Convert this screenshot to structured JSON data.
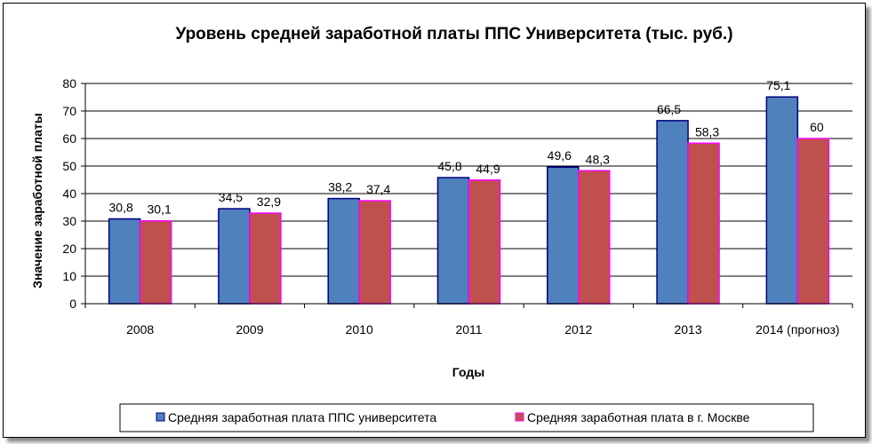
{
  "chart_data": {
    "type": "bar",
    "title": "Уровень средней заработной платы ППС Университета (тыс. руб.)",
    "xlabel": "Годы",
    "ylabel": "Значение заработной платы",
    "categories": [
      "2008",
      "2009",
      "2010",
      "2011",
      "2012",
      "2013",
      "2014 (прогноз)"
    ],
    "series": [
      {
        "name": "Средняя заработная плата ППС университета",
        "values": [
          30.8,
          34.5,
          38.2,
          45.8,
          49.6,
          66.5,
          75.1
        ],
        "labels": [
          "30,8",
          "34,5",
          "38,2",
          "45,8",
          "49,6",
          "66,5",
          "75,1"
        ],
        "fill": "#4f81bd",
        "stroke": "#000080"
      },
      {
        "name": "Средняя заработная плата в г. Москве",
        "values": [
          30.1,
          32.9,
          37.4,
          44.9,
          48.3,
          58.3,
          60
        ],
        "labels": [
          "30,1",
          "32,9",
          "37,4",
          "44,9",
          "48,3",
          "58,3",
          "60"
        ],
        "fill": "#c0504d",
        "stroke": "#ff00ff"
      }
    ],
    "ylim": [
      0,
      80
    ],
    "yticks": [
      "0",
      "10",
      "20",
      "30",
      "40",
      "50",
      "60",
      "70",
      "80"
    ],
    "grid": true,
    "legend": "bottom"
  }
}
